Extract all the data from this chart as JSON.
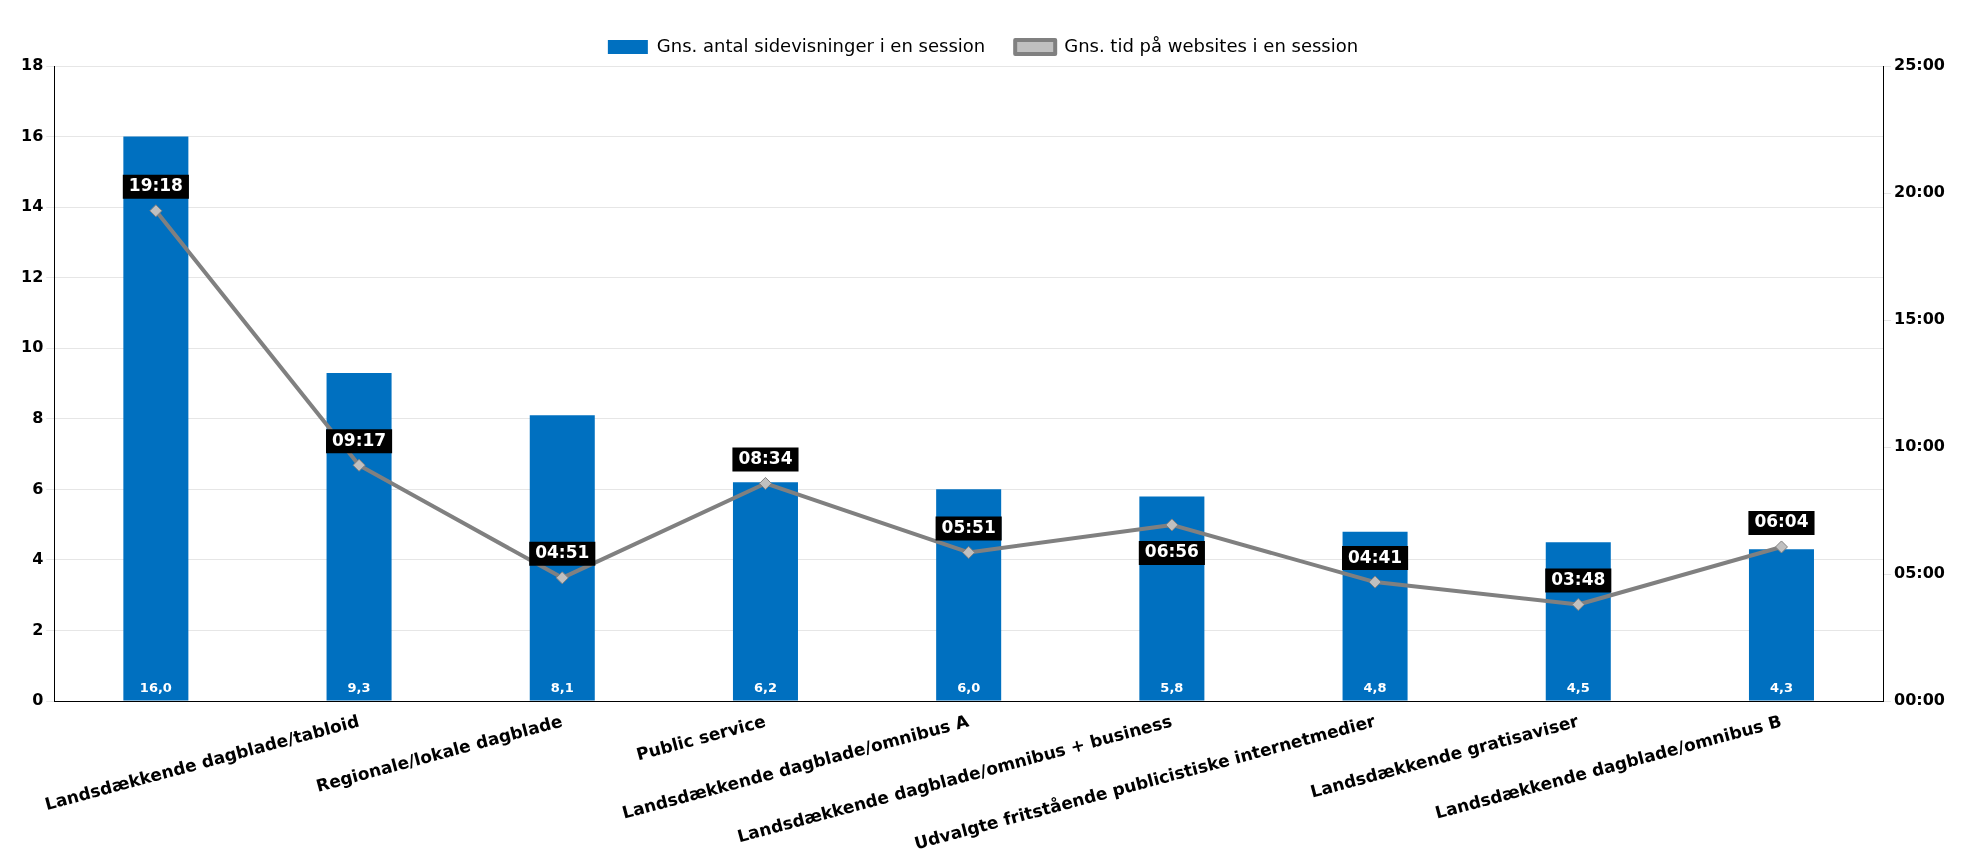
{
  "chart_data": {
    "type": "bar",
    "categories": [
      null,
      "Landsdækkende dagblade/tabloid",
      "Regionale/lokale dagblade",
      "Public service",
      "Landsdækkende dagblade/omnibus A",
      "Landsdækkende dagblade/omnibus + business",
      "Udvalgte fritstående publicistiske internetmedier",
      "Landsdækkende gratisaviser",
      "Landsdækkende dagblade/omnibus B"
    ],
    "series": [
      {
        "name": "Gns. antal sidevisninger i en session",
        "color": "#0070c0",
        "values": [
          16.0,
          9.3,
          8.1,
          6.2,
          6.0,
          5.8,
          4.8,
          4.5,
          4.3
        ],
        "value_labels": [
          "16,0",
          "9,3",
          "8,1",
          "6,2",
          "6,0",
          "5,8",
          "4,8",
          "4,5",
          "4,3"
        ]
      },
      {
        "name": "Gns. tid på websites i en session",
        "type": "line",
        "axis": "y2",
        "color": "#808080",
        "values": [
          19.3,
          9.2833,
          4.85,
          8.5667,
          5.85,
          6.9333,
          4.6833,
          3.8,
          6.0667
        ],
        "value_labels": [
          "19:18",
          "09:17",
          "04:51",
          "08:34",
          "05:51",
          "06:56",
          "04:41",
          "03:48",
          "06:04"
        ]
      }
    ],
    "ylim": [
      0,
      18
    ],
    "yticks": [
      0,
      2,
      4,
      6,
      8,
      10,
      12,
      14,
      16,
      18
    ],
    "y2lim": [
      0,
      25
    ],
    "y2ticks": [
      {
        "value": 0,
        "label": "00:00"
      },
      {
        "value": 5,
        "label": "05:00"
      },
      {
        "value": 10,
        "label": "10:00"
      },
      {
        "value": 15,
        "label": "15:00"
      },
      {
        "value": 20,
        "label": "20:00"
      },
      {
        "value": 25,
        "label": "25:00"
      }
    ],
    "grid": "y",
    "legend": "top",
    "marker": "diamond",
    "line_style": "solid"
  }
}
